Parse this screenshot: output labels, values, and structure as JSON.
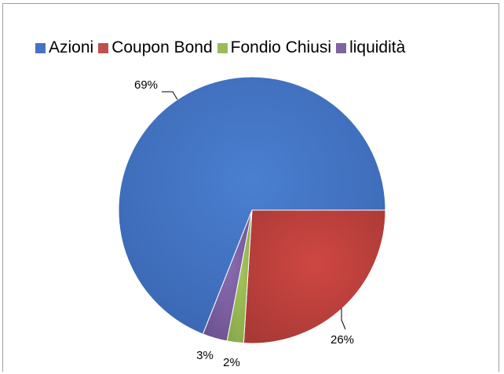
{
  "chart_data": {
    "type": "pie",
    "categories": [
      "Azioni",
      "Coupon Bond",
      "Fondio Chiusi",
      "liquidità"
    ],
    "values": [
      69,
      26,
      2,
      3
    ],
    "data_labels": [
      "69%",
      "26%",
      "2%",
      "3%"
    ],
    "colors": [
      "#4472C4",
      "#C0504D",
      "#9BBB59",
      "#8064A2"
    ],
    "legend_position": "top",
    "start_angle_deg": 0,
    "direction": "clockwise from 3 o'clock: Coupon Bond, Fondio Chiusi, liquidità, Azioni"
  }
}
